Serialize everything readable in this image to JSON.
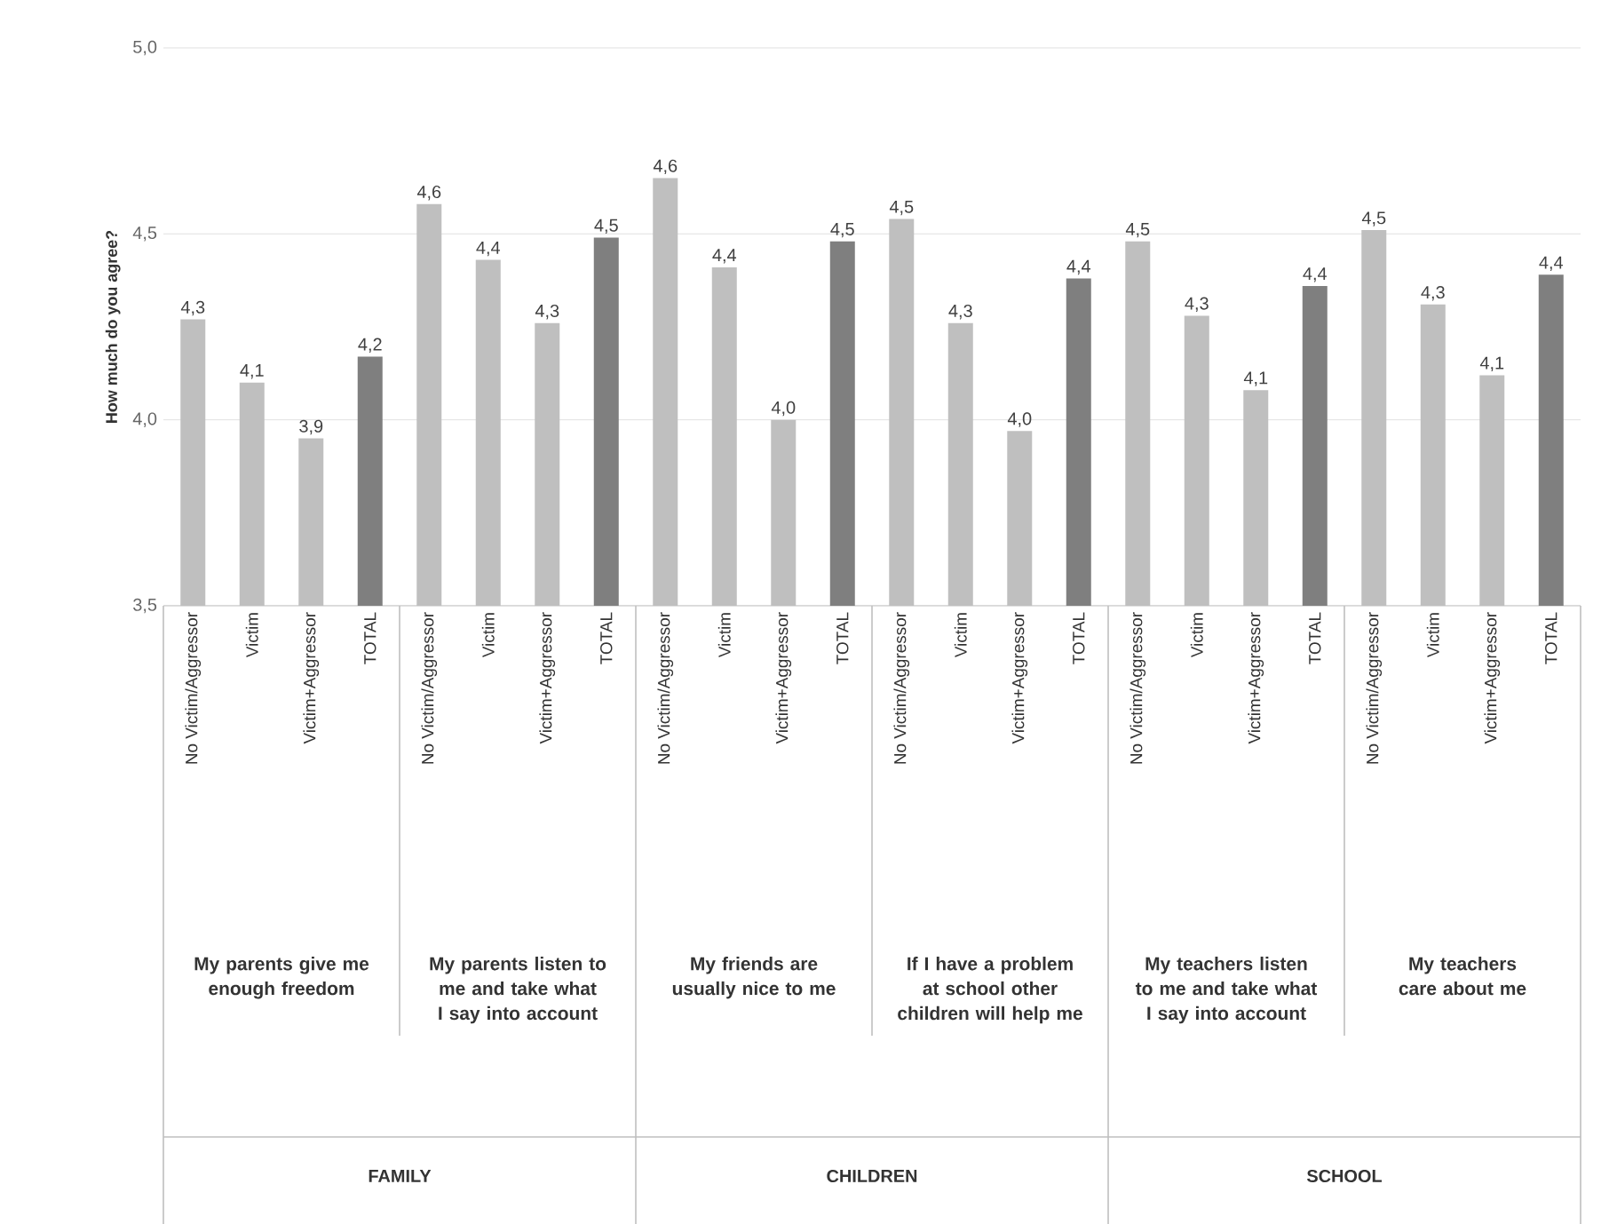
{
  "chart_data": {
    "type": "bar",
    "ylabel": "How much do you agree?",
    "categories": [
      "No Victim/Aggressor",
      "Victim",
      "Victim+Aggressor",
      "TOTAL",
      "No Victim/Aggressor",
      "Victim",
      "Victim+Aggressor",
      "TOTAL",
      "No Victim/Aggressor",
      "Victim",
      "Victim+Aggressor",
      "TOTAL",
      "No Victim/Aggressor",
      "Victim",
      "Victim+Aggressor",
      "TOTAL",
      "No Victim/Aggressor",
      "Victim",
      "Victim+Aggressor",
      "TOTAL",
      "No Victim/Aggressor",
      "Victim",
      "Victim+Aggressor",
      "TOTAL"
    ],
    "values": [
      4.27,
      4.1,
      3.95,
      4.17,
      4.58,
      4.43,
      4.26,
      4.49,
      4.65,
      4.41,
      4.0,
      4.48,
      4.54,
      4.26,
      3.97,
      4.38,
      4.48,
      4.28,
      4.08,
      4.36,
      4.51,
      4.31,
      4.12,
      4.39
    ],
    "value_labels": [
      "4,3",
      "4,1",
      "3,9",
      "4,2",
      "4,6",
      "4,4",
      "4,3",
      "4,5",
      "4,6",
      "4,4",
      "4,0",
      "4,5",
      "4,5",
      "4,3",
      "4,0",
      "4,4",
      "4,5",
      "4,3",
      "4,1",
      "4,4",
      "4,5",
      "4,3",
      "4,1",
      "4,4"
    ],
    "colors": [
      "#bfbfbf",
      "#bfbfbf",
      "#bfbfbf",
      "#7f7f7f",
      "#bfbfbf",
      "#bfbfbf",
      "#bfbfbf",
      "#7f7f7f",
      "#bfbfbf",
      "#bfbfbf",
      "#bfbfbf",
      "#7f7f7f",
      "#bfbfbf",
      "#bfbfbf",
      "#bfbfbf",
      "#7f7f7f",
      "#bfbfbf",
      "#bfbfbf",
      "#bfbfbf",
      "#7f7f7f",
      "#bfbfbf",
      "#bfbfbf",
      "#bfbfbf",
      "#7f7f7f"
    ],
    "ylim": [
      3.5,
      5.0
    ],
    "yticks": [
      {
        "value": 3.5,
        "label": "3,5"
      },
      {
        "value": 4.0,
        "label": "4,0"
      },
      {
        "value": 4.5,
        "label": "4,5"
      },
      {
        "value": 5.0,
        "label": "5,0"
      }
    ],
    "grid": "y",
    "annotations": [
      "My parents give me enough freedom",
      "My parents listen to me and take what I say into account",
      "My friends are usually nice to me",
      "If I have a problem at school other children will help me",
      "My teachers listen to me and take what I say into account",
      "My teachers care about me",
      "FAMILY",
      "CHILDREN",
      "SCHOOL"
    ]
  }
}
